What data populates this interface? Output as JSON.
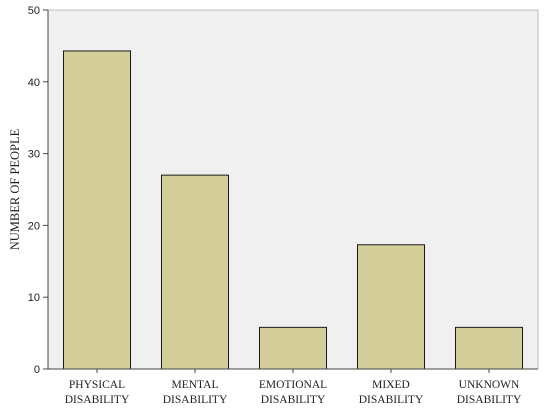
{
  "colors": {
    "plot_background": "#f0f0f0",
    "bar_fill": "#d4cf9a",
    "bar_stroke": "#1a1a1a",
    "axis": "#444444"
  },
  "chart_data": {
    "type": "bar",
    "categories": [
      [
        "PHYSICAL",
        "DISABILITY"
      ],
      [
        "MENTAL",
        "DISABILITY"
      ],
      [
        "EMOTIONAL",
        "DISABILITY"
      ],
      [
        "MIXED",
        "DISABILITY"
      ],
      [
        "UNKNOWN",
        "DISABILITY"
      ]
    ],
    "values": [
      44.3,
      27.0,
      5.8,
      17.3,
      5.8
    ],
    "title": "",
    "xlabel": "",
    "ylabel": "NUMBER OF PEOPLE",
    "ylim": [
      0,
      50
    ],
    "yticks": [
      0,
      10,
      20,
      30,
      40,
      50
    ],
    "grid": false,
    "legend": "none"
  }
}
